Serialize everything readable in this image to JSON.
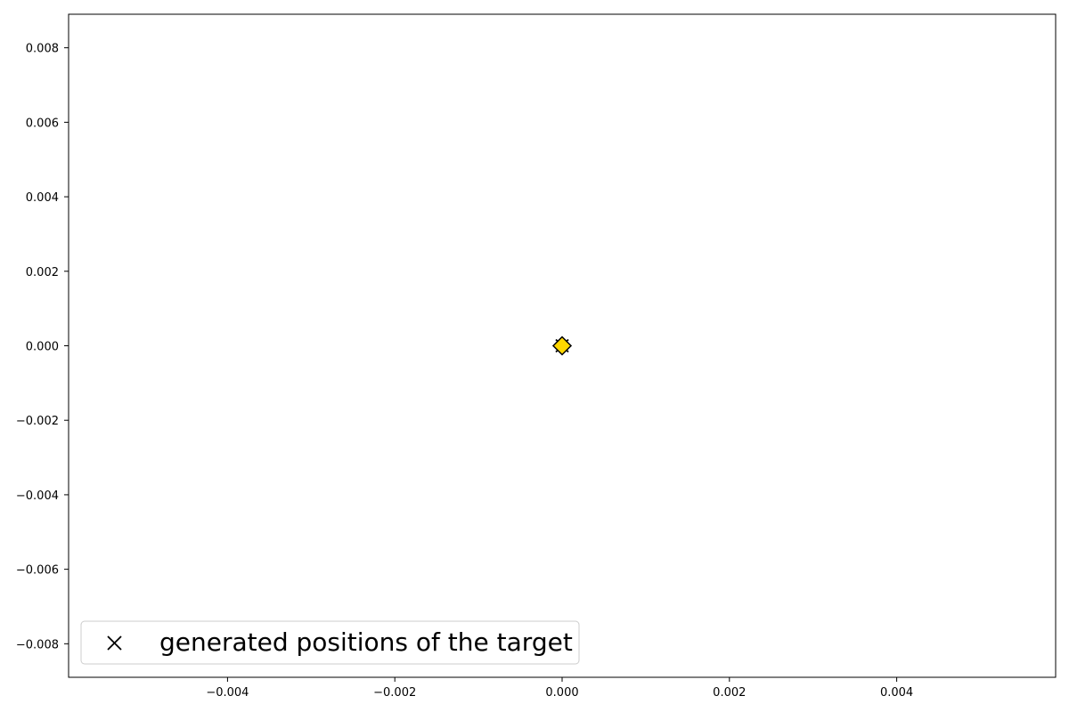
{
  "chart_data": {
    "type": "scatter",
    "title": "",
    "xlabel": "",
    "ylabel": "",
    "xlim": [
      -0.0059,
      0.0059
    ],
    "ylim": [
      -0.0089,
      0.0089
    ],
    "x_ticks": [
      -0.004,
      -0.002,
      0.0,
      0.002,
      0.004
    ],
    "x_tick_labels": [
      "−0.004",
      "−0.002",
      "0.000",
      "0.002",
      "0.004"
    ],
    "y_ticks": [
      0.008,
      0.006,
      0.004,
      0.002,
      0.0,
      -0.002,
      -0.004,
      -0.006,
      -0.008
    ],
    "y_tick_labels": [
      "0.008",
      "0.006",
      "0.004",
      "0.002",
      "0.000",
      "−0.002",
      "−0.004",
      "−0.006",
      "−0.008"
    ],
    "grid": false,
    "series": [
      {
        "name": "generated positions of the target",
        "marker": "x",
        "color": "#000000",
        "points": [
          {
            "x": 0.0,
            "y": 0.0
          }
        ]
      },
      {
        "marker": "diamond",
        "color": "#ffd700",
        "edge_color": "#000000",
        "points": [
          {
            "x": 0.0,
            "y": 0.0
          }
        ]
      }
    ],
    "legend": {
      "placement": "lower-left",
      "entries": [
        {
          "label": "generated positions of the target",
          "marker": "x"
        }
      ]
    }
  }
}
